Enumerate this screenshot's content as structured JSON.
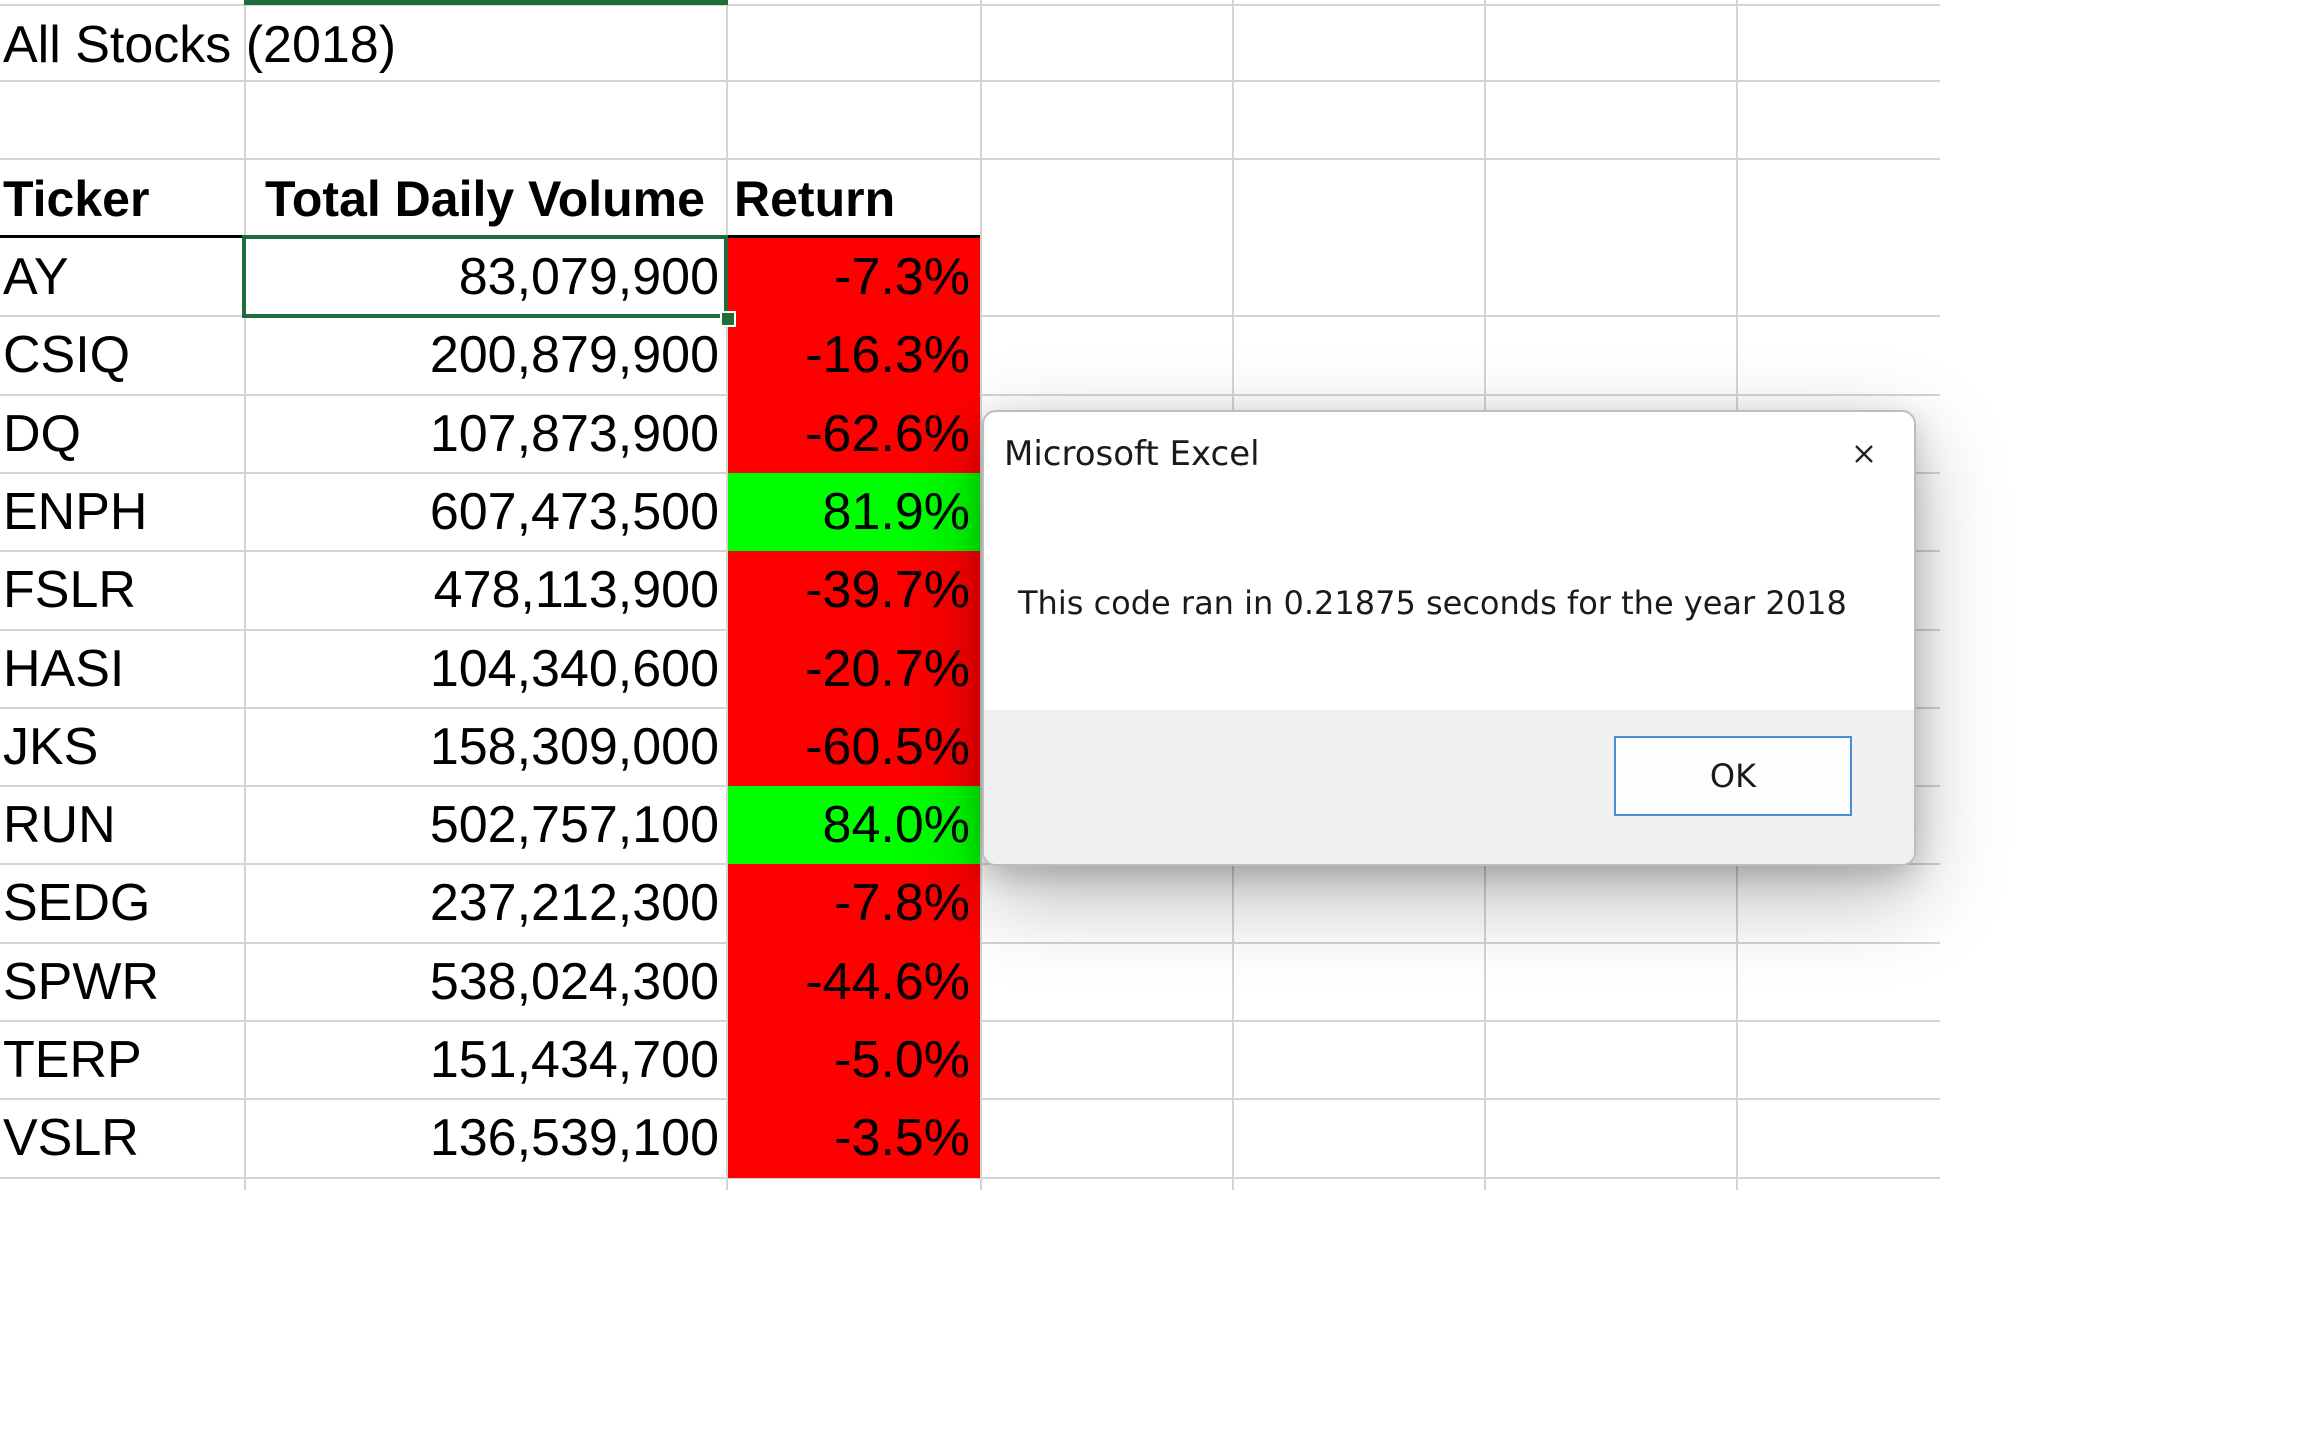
{
  "sheet": {
    "title": "All Stocks (2018)",
    "headers": {
      "ticker": "Ticker",
      "volume": "Total Daily Volume",
      "return": "Return"
    },
    "rows": [
      {
        "ticker": "AY",
        "volume": "83,079,900",
        "return": "-7.3%",
        "color": "#ff0000"
      },
      {
        "ticker": "CSIQ",
        "volume": "200,879,900",
        "return": "-16.3%",
        "color": "#ff0000"
      },
      {
        "ticker": "DQ",
        "volume": "107,873,900",
        "return": "-62.6%",
        "color": "#ff0000"
      },
      {
        "ticker": "ENPH",
        "volume": "607,473,500",
        "return": "81.9%",
        "color": "#00ff00"
      },
      {
        "ticker": "FSLR",
        "volume": "478,113,900",
        "return": "-39.7%",
        "color": "#ff0000"
      },
      {
        "ticker": "HASI",
        "volume": "104,340,600",
        "return": "-20.7%",
        "color": "#ff0000"
      },
      {
        "ticker": "JKS",
        "volume": "158,309,000",
        "return": "-60.5%",
        "color": "#ff0000"
      },
      {
        "ticker": "RUN",
        "volume": "502,757,100",
        "return": "84.0%",
        "color": "#00ff00"
      },
      {
        "ticker": "SEDG",
        "volume": "237,212,300",
        "return": "-7.8%",
        "color": "#ff0000"
      },
      {
        "ticker": "SPWR",
        "volume": "538,024,300",
        "return": "-44.6%",
        "color": "#ff0000"
      },
      {
        "ticker": "TERP",
        "volume": "151,434,700",
        "return": "-5.0%",
        "color": "#ff0000"
      },
      {
        "ticker": "VSLR",
        "volume": "136,539,100",
        "return": "-3.5%",
        "color": "#ff0000"
      }
    ]
  },
  "dialog": {
    "title": "Microsoft Excel",
    "message": "This code ran in 0.21875 seconds for the year 2018",
    "ok_label": "OK",
    "close_icon": "close-icon"
  },
  "colors": {
    "negative_fill": "#ff0000",
    "positive_fill": "#00ff00",
    "selection": "#1e6e3c",
    "ok_border": "#4a8cd6"
  }
}
